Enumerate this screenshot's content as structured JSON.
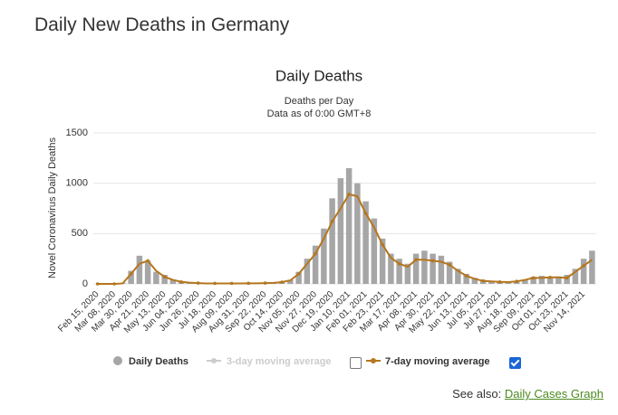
{
  "header": {
    "title": "Daily New Deaths in Germany"
  },
  "chart_data": {
    "type": "bar",
    "title": "Daily Deaths",
    "subtitle": [
      "Deaths per Day",
      "Data as of 0:00 GMT+8"
    ],
    "y_label": "Novel Coronavirus Daily Deaths",
    "categories": [
      "Feb 15, 2020",
      null,
      "Mar 08, 2020",
      null,
      "Mar 30, 2020",
      null,
      "Apr 21, 2020",
      null,
      "May 13, 2020",
      null,
      "Jun 04, 2020",
      null,
      "Jun 26, 2020",
      null,
      "Jul 18, 2020",
      null,
      "Aug 09, 2020",
      null,
      "Aug 31, 2020",
      null,
      "Sep 22, 2020",
      null,
      "Oct 14, 2020",
      null,
      "Nov 05, 2020",
      null,
      "Nov 27, 2020",
      null,
      "Dec 19, 2020",
      null,
      "Jan 10, 2021",
      null,
      "Feb 01, 2021",
      null,
      "Feb 23, 2021",
      null,
      "Mar 17, 2021",
      null,
      "Apr 08, 2021",
      null,
      "Apr 30, 2021",
      null,
      "May 22, 2021",
      null,
      "Jun 13, 2021",
      null,
      "Jul 05, 2021",
      null,
      "Jul 27, 2021",
      null,
      "Aug 18, 2021",
      null,
      "Sep 09, 2021",
      null,
      "Oct 01, 2021",
      null,
      "Oct 23, 2021",
      null,
      "Nov 14, 2021",
      null
    ],
    "series": [
      {
        "name": "Daily Deaths",
        "color": "#a6a6a6",
        "values": [
          0,
          0,
          0,
          10,
          130,
          280,
          230,
          120,
          90,
          40,
          25,
          15,
          10,
          6,
          5,
          5,
          5,
          6,
          6,
          7,
          10,
          12,
          20,
          40,
          120,
          250,
          380,
          550,
          850,
          1050,
          1150,
          1000,
          820,
          650,
          450,
          300,
          250,
          200,
          300,
          330,
          300,
          280,
          220,
          150,
          100,
          60,
          40,
          30,
          25,
          20,
          30,
          45,
          70,
          80,
          70,
          75,
          90,
          150,
          250,
          330
        ]
      },
      {
        "name": "7-day moving average",
        "color": "#b5761f",
        "checked": true,
        "values": [
          0,
          0,
          0,
          5,
          100,
          200,
          230,
          130,
          70,
          40,
          20,
          12,
          8,
          5,
          5,
          5,
          5,
          5,
          6,
          6,
          8,
          10,
          18,
          35,
          100,
          200,
          300,
          450,
          620,
          750,
          890,
          870,
          700,
          560,
          390,
          260,
          200,
          170,
          240,
          240,
          230,
          220,
          190,
          130,
          80,
          50,
          30,
          25,
          20,
          18,
          25,
          40,
          60,
          60,
          65,
          65,
          60,
          120,
          180,
          240
        ]
      }
    ],
    "hidden_series": [
      {
        "name": "3-day moving average",
        "color": "#cccccc",
        "checked": false
      }
    ],
    "ylim": [
      0,
      1500
    ],
    "yticks": [
      0,
      500,
      1000,
      1500
    ],
    "grid": true
  },
  "footer": {
    "prefix": "See also:",
    "link": "Daily Cases Graph"
  }
}
